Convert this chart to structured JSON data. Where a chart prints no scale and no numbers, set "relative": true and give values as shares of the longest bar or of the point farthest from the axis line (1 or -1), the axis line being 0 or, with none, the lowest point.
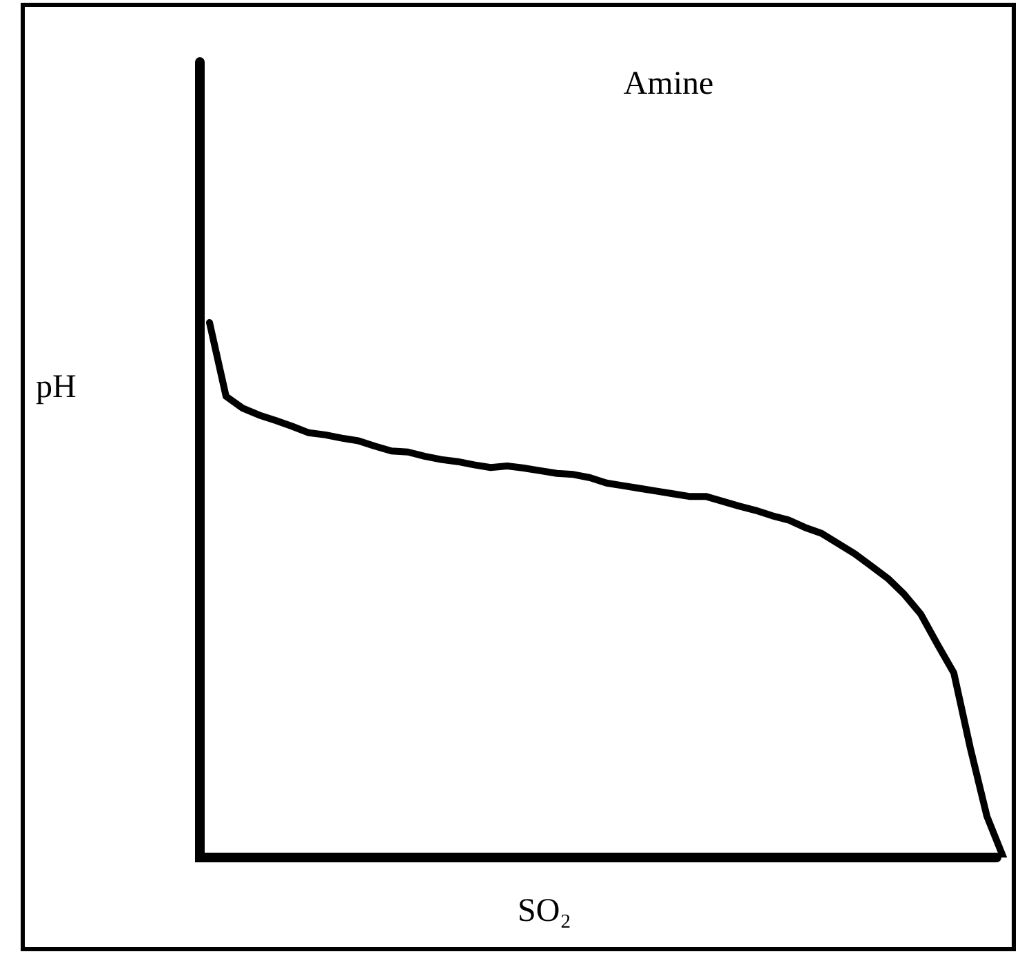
{
  "chart_data": {
    "type": "line",
    "title": "Amine",
    "xlabel": "SO₂",
    "ylabel": "pH",
    "relative": true,
    "legend": false,
    "marker": "none",
    "line_style": "solid",
    "categories": [
      null,
      null,
      null,
      null,
      null,
      null,
      null,
      null,
      null,
      null,
      null,
      null,
      null,
      null,
      null,
      null,
      null,
      null,
      null,
      null,
      null,
      null,
      null,
      null,
      null,
      null,
      null,
      null,
      null,
      null,
      null,
      null,
      null,
      null,
      null,
      null,
      null,
      null,
      null,
      null,
      null,
      null,
      null,
      null,
      null,
      null,
      null,
      null,
      null
    ],
    "series": [
      {
        "color": "#000000",
        "values": [
          1,
          0.862,
          0.84,
          0.827,
          0.817,
          0.806,
          0.794,
          0.79,
          0.784,
          0.779,
          0.769,
          0.76,
          0.758,
          0.75,
          0.744,
          0.74,
          0.734,
          0.729,
          0.732,
          0.728,
          0.723,
          0.718,
          0.716,
          0.71,
          0.7,
          0.695,
          0.69,
          0.685,
          0.68,
          0.675,
          0.675,
          0.666,
          0.657,
          0.649,
          0.639,
          0.631,
          0.617,
          0.606,
          0.587,
          0.568,
          0.545,
          0.522,
          0.492,
          0.455,
          0.399,
          0.345,
          0.204,
          0.077,
          0
        ]
      }
    ]
  }
}
